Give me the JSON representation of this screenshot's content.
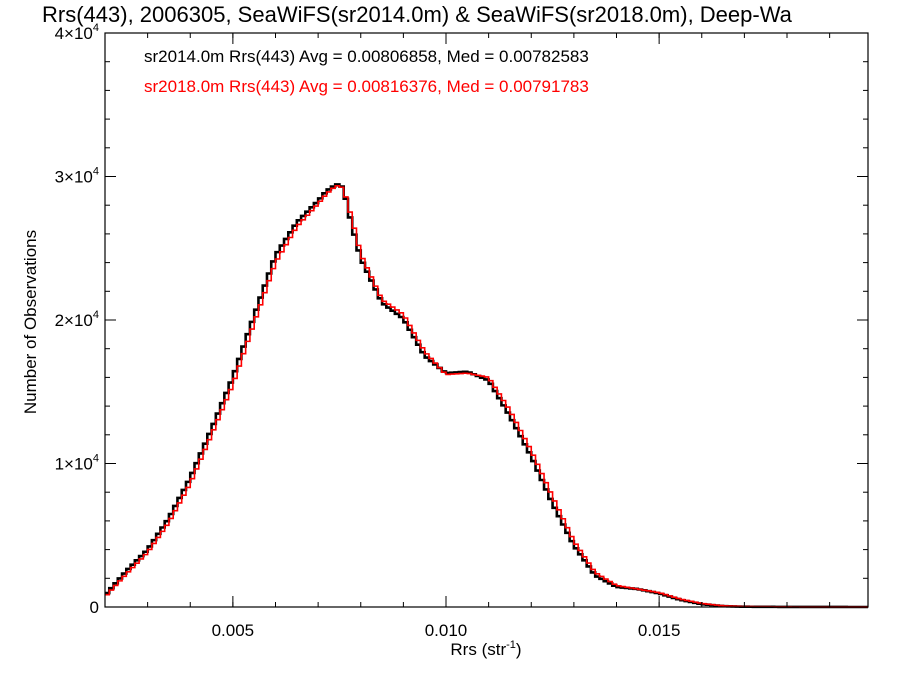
{
  "chart_data": {
    "type": "line",
    "title": "Rrs(443), 2006305, SeaWiFS(sr2014.0m) & SeaWiFS(sr2018.0m), Deep-Wa",
    "xlabel": "Rrs (str",
    "xlabel_sup": "-1",
    "xlabel_end": ")",
    "ylabel": "Number of Observations",
    "xlim": [
      0.002,
      0.0199
    ],
    "ylim": [
      0,
      40000
    ],
    "x_ticks": [
      {
        "value": 0.005,
        "label": "0.005"
      },
      {
        "value": 0.01,
        "label": "0.010"
      },
      {
        "value": 0.015,
        "label": "0.015"
      }
    ],
    "x_minor_step": 0.001,
    "y_ticks": [
      {
        "value": 0,
        "label": "0",
        "exp": ""
      },
      {
        "value": 10000,
        "label": "1×10",
        "exp": "4"
      },
      {
        "value": 20000,
        "label": "2×10",
        "exp": "4"
      },
      {
        "value": 30000,
        "label": "3×10",
        "exp": "4"
      },
      {
        "value": 40000,
        "label": "4×10",
        "exp": "4"
      }
    ],
    "y_minor_step": 2000,
    "legend_position": "top-left",
    "series": [
      {
        "name": "sr2014.0m Rrs(443) Avg = 0.00806858, Med = 0.00782583",
        "color": "#000000",
        "x": [
          0.002,
          0.0025,
          0.003,
          0.0035,
          0.004,
          0.0045,
          0.005,
          0.0055,
          0.006,
          0.0065,
          0.007,
          0.0072,
          0.0074,
          0.0075,
          0.0076,
          0.0078,
          0.008,
          0.0085,
          0.009,
          0.0095,
          0.01,
          0.0105,
          0.011,
          0.0115,
          0.012,
          0.0125,
          0.013,
          0.0135,
          0.014,
          0.0145,
          0.015,
          0.0155,
          0.016,
          0.0165,
          0.017,
          0.018,
          0.019,
          0.0199
        ],
        "y": [
          800,
          2500,
          4000,
          6200,
          9000,
          12400,
          16000,
          20300,
          24500,
          26800,
          28300,
          29000,
          29400,
          29500,
          29100,
          26500,
          24300,
          21200,
          20100,
          17500,
          16300,
          16400,
          15800,
          13300,
          10500,
          7200,
          4300,
          2200,
          1400,
          1250,
          950,
          500,
          200,
          60,
          20,
          5,
          2,
          0
        ]
      },
      {
        "name": "sr2018.0m Rrs(443) Avg = 0.00816376, Med = 0.00791783",
        "color": "#ff0000",
        "x": [
          0.002,
          0.0025,
          0.003,
          0.0035,
          0.004,
          0.0045,
          0.005,
          0.0055,
          0.006,
          0.0065,
          0.007,
          0.0072,
          0.0074,
          0.0075,
          0.0076,
          0.0078,
          0.008,
          0.0085,
          0.009,
          0.0095,
          0.01,
          0.0105,
          0.011,
          0.0115,
          0.012,
          0.0125,
          0.013,
          0.0135,
          0.014,
          0.0145,
          0.015,
          0.0155,
          0.016,
          0.0165,
          0.017,
          0.018,
          0.019,
          0.0199
        ],
        "y": [
          700,
          2300,
          3800,
          5900,
          8600,
          12000,
          15500,
          19800,
          24000,
          26500,
          28100,
          28800,
          29300,
          29400,
          29100,
          27000,
          24600,
          21400,
          20400,
          17800,
          16200,
          16300,
          16000,
          13700,
          10900,
          7700,
          4600,
          2400,
          1500,
          1250,
          1000,
          550,
          250,
          80,
          30,
          10,
          3,
          1
        ]
      }
    ]
  }
}
